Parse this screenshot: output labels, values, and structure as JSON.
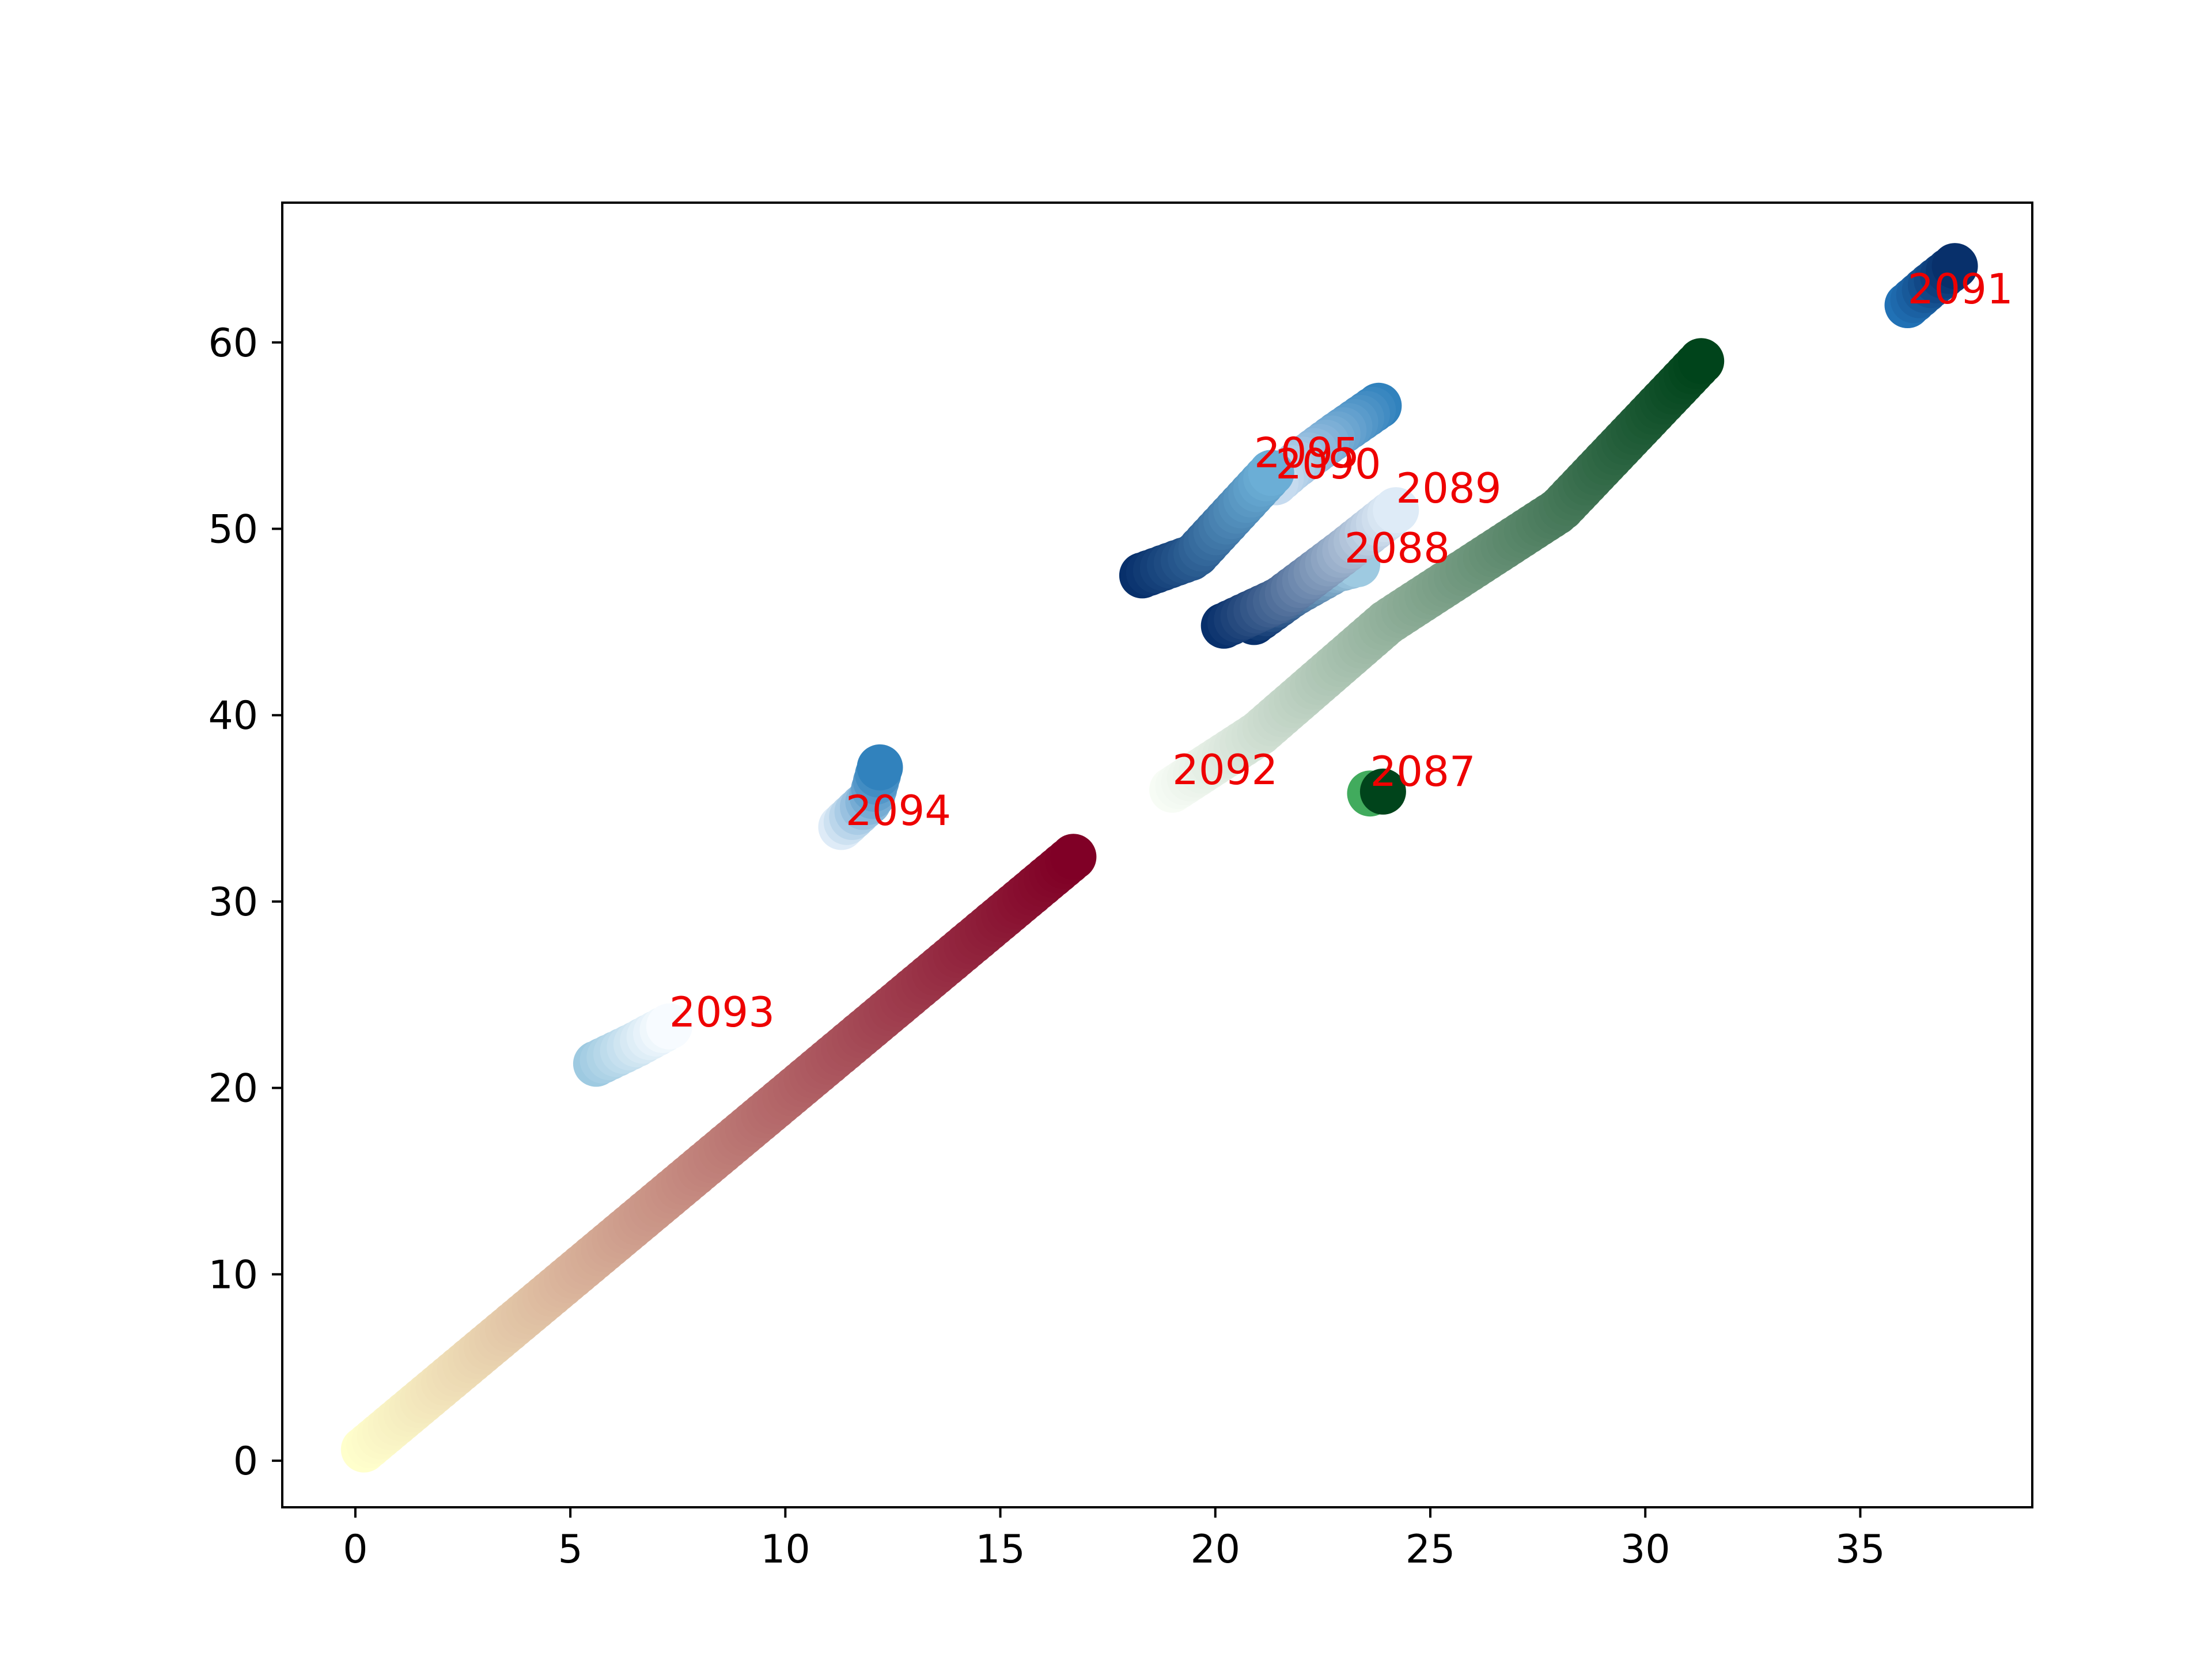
{
  "chart_data": {
    "type": "scatter",
    "title": "",
    "xlabel": "",
    "ylabel": "",
    "xlim": [
      -1.7,
      39.0
    ],
    "ylim": [
      -2.5,
      67.5
    ],
    "xticks": [
      0,
      5,
      10,
      15,
      20,
      25,
      30,
      35
    ],
    "yticks": [
      0,
      10,
      20,
      30,
      40,
      50,
      60
    ],
    "grid": false,
    "legend": "none",
    "annotation_color": "#ee0000",
    "series": [
      {
        "label": "2087",
        "colormap": "Greens",
        "color_start": "#41ab5d",
        "color_end": "#00441b",
        "points": [
          [
            23.6,
            35.8
          ],
          [
            23.7,
            35.9
          ],
          [
            23.8,
            35.8
          ],
          [
            23.9,
            35.9
          ]
        ],
        "label_pos": [
          23.6,
          36.2
        ]
      },
      {
        "label": "2088",
        "colormap": "Blues",
        "color_start": "#08306b",
        "color_end": "#9ecae1",
        "points": [
          [
            20.9,
            45.0
          ],
          [
            21.8,
            46.5
          ],
          [
            22.8,
            47.8
          ],
          [
            23.3,
            48.1
          ]
        ],
        "label_pos": [
          23.0,
          48.2
        ]
      },
      {
        "label": "2089",
        "colormap": "Blues",
        "color_start": "#08306b",
        "color_end": "#deebf7",
        "points": [
          [
            20.2,
            44.8
          ],
          [
            21.5,
            46.2
          ],
          [
            23.0,
            48.8
          ],
          [
            24.2,
            51.0
          ]
        ],
        "label_pos": [
          24.2,
          51.4
        ]
      },
      {
        "label": "2090",
        "colormap": "Blues",
        "color_start": "#3182bd",
        "color_end": "#c6dbef",
        "points": [
          [
            23.8,
            56.6
          ],
          [
            22.8,
            55.0
          ],
          [
            21.8,
            53.3
          ],
          [
            21.4,
            52.5
          ]
        ],
        "label_pos": [
          21.4,
          52.7
        ]
      },
      {
        "label": "2091",
        "colormap": "Blues",
        "color_start": "#2171b5",
        "color_end": "#08306b",
        "points": [
          [
            36.1,
            62.0
          ],
          [
            36.6,
            63.0
          ],
          [
            37.2,
            64.1
          ]
        ],
        "label_pos": [
          36.1,
          62.1
        ]
      },
      {
        "label": "2092",
        "colormap": "Greens",
        "color_start": "#f7fcf5",
        "color_end": "#00441b",
        "points": [
          [
            19.0,
            36.0
          ],
          [
            21.0,
            39.0
          ],
          [
            24.0,
            45.0
          ],
          [
            28.0,
            51.0
          ],
          [
            31.3,
            59.0
          ]
        ],
        "label_pos": [
          19.0,
          36.3
        ]
      },
      {
        "label": "2093",
        "colormap": "Blues",
        "color_start": "#9ecae1",
        "color_end": "#f7fbff",
        "points": [
          [
            5.6,
            21.3
          ],
          [
            6.5,
            22.3
          ],
          [
            7.3,
            23.3
          ]
        ],
        "label_pos": [
          7.3,
          23.3
        ]
      },
      {
        "label": "2094",
        "colormap": "Blues",
        "color_start": "#deebf7",
        "color_end": "#3182bd",
        "points": [
          [
            11.3,
            34.0
          ],
          [
            12.0,
            35.5
          ],
          [
            12.2,
            37.2
          ]
        ],
        "label_pos": [
          11.4,
          34.1
        ]
      },
      {
        "label": "2095",
        "colormap": "Blues",
        "color_start": "#08306b",
        "color_end": "#6baed6",
        "points": [
          [
            18.3,
            47.5
          ],
          [
            19.5,
            48.5
          ],
          [
            20.5,
            51.0
          ],
          [
            21.3,
            53.0
          ]
        ],
        "label_pos": [
          20.9,
          53.3
        ]
      },
      {
        "label": "",
        "colormap": "YlOrRd",
        "color_start": "#ffffcc",
        "color_end": "#800026",
        "points": [
          [
            0.2,
            0.6
          ],
          [
            16.7,
            32.4
          ]
        ],
        "label_pos": null
      }
    ]
  }
}
